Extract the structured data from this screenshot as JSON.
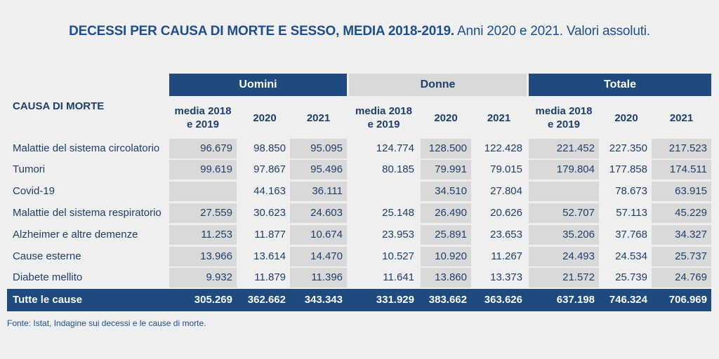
{
  "title_bold": "DECESSI PER CAUSA DI MORTE E SESSO, MEDIA 2018-2019.",
  "title_rest": " Anni 2020 e 2021. Valori assoluti.",
  "cause_header": "CAUSA DI MORTE",
  "groups": [
    "Uomini",
    "Donne",
    "Totale"
  ],
  "subheaders": [
    "media 2018\ne 2019",
    "2020",
    "2021"
  ],
  "source": "Fonte: Istat, Indagine sui decessi e le cause di morte.",
  "chart_data": {
    "type": "table",
    "title": "DECESSI PER CAUSA DI MORTE E SESSO, MEDIA 2018-2019. Anni 2020 e 2021. Valori assoluti.",
    "columns": [
      "Uomini media 2018 e 2019",
      "Uomini 2020",
      "Uomini 2021",
      "Donne media 2018 e 2019",
      "Donne 2020",
      "Donne 2021",
      "Totale media 2018 e 2019",
      "Totale 2020",
      "Totale 2021"
    ],
    "rows": [
      {
        "label": "Malattie del sistema circolatorio",
        "values": [
          "96.679",
          "98.850",
          "95.095",
          "124.774",
          "128.500",
          "122.428",
          "221.452",
          "227.350",
          "217.523"
        ]
      },
      {
        "label": "Tumori",
        "values": [
          "99.619",
          "97.867",
          "95.496",
          "80.185",
          "79.991",
          "79.015",
          "179.804",
          "177.858",
          "174.511"
        ]
      },
      {
        "label": "Covid-19",
        "values": [
          "",
          "44.163",
          "36.111",
          "",
          "34.510",
          "27.804",
          "",
          "78.673",
          "63.915"
        ]
      },
      {
        "label": "Malattie del sistema respiratorio",
        "values": [
          "27.559",
          "30.623",
          "24.603",
          "25.148",
          "26.490",
          "20.626",
          "52.707",
          "57.113",
          "45.229"
        ]
      },
      {
        "label": "Alzheimer e altre demenze",
        "values": [
          "11.253",
          "11.877",
          "10.674",
          "23.953",
          "25.891",
          "23.653",
          "35.206",
          "37.768",
          "34.327"
        ]
      },
      {
        "label": "Cause esterne",
        "values": [
          "13.966",
          "13.614",
          "14.470",
          "10.527",
          "10.920",
          "11.267",
          "24.493",
          "24.534",
          "25.737"
        ]
      },
      {
        "label": "Diabete mellito",
        "values": [
          "9.932",
          "11.879",
          "11.396",
          "11.641",
          "13.860",
          "13.373",
          "21.572",
          "25.739",
          "24.769"
        ]
      }
    ],
    "total": {
      "label": "Tutte le cause",
      "values": [
        "305.269",
        "362.662",
        "343.343",
        "331.929",
        "383.662",
        "363.626",
        "637.198",
        "746.324",
        "706.969"
      ]
    }
  }
}
